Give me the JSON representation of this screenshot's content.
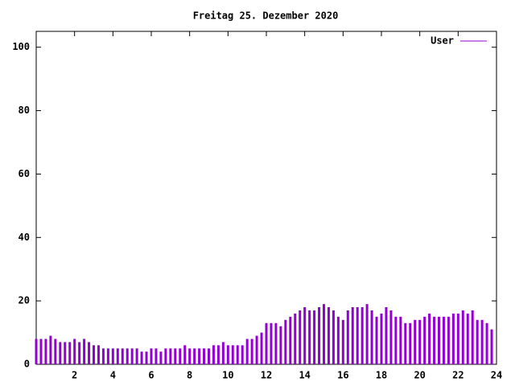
{
  "chart_data": {
    "type": "impulse",
    "title": "Freitag 25. Dezember 2020",
    "series": [
      {
        "name": "User",
        "color": "#9400d3",
        "x": [
          0,
          0.25,
          0.5,
          0.75,
          1,
          1.25,
          1.5,
          1.75,
          2,
          2.25,
          2.5,
          2.75,
          3,
          3.25,
          3.5,
          3.75,
          4,
          4.25,
          4.5,
          4.75,
          5,
          5.25,
          5.5,
          5.75,
          6,
          6.25,
          6.5,
          6.75,
          7,
          7.25,
          7.5,
          7.75,
          8,
          8.25,
          8.5,
          8.75,
          9,
          9.25,
          9.5,
          9.75,
          10,
          10.25,
          10.5,
          10.75,
          11,
          11.25,
          11.5,
          11.75,
          12,
          12.25,
          12.5,
          12.75,
          13,
          13.25,
          13.5,
          13.75,
          14,
          14.25,
          14.5,
          14.75,
          15,
          15.25,
          15.5,
          15.75,
          16,
          16.25,
          16.5,
          16.75,
          17,
          17.25,
          17.5,
          17.75,
          18,
          18.25,
          18.5,
          18.75,
          19,
          19.25,
          19.5,
          19.75,
          20,
          20.25,
          20.5,
          20.75,
          21,
          21.25,
          21.5,
          21.75,
          22,
          22.25,
          22.5,
          22.75,
          23,
          23.25,
          23.5,
          23.75
        ],
        "values": [
          8,
          8,
          8,
          9,
          8,
          7,
          7,
          7,
          8,
          7,
          8,
          7,
          6,
          6,
          5,
          5,
          5,
          5,
          5,
          5,
          5,
          5,
          4,
          4,
          5,
          5,
          4,
          5,
          5,
          5,
          5,
          6,
          5,
          5,
          5,
          5,
          5,
          6,
          6,
          7,
          6,
          6,
          6,
          6,
          8,
          8,
          9,
          10,
          13,
          13,
          13,
          12,
          14,
          15,
          16,
          17,
          18,
          17,
          17,
          18,
          19,
          18,
          17,
          15,
          14,
          17,
          18,
          18,
          18,
          19,
          17,
          15,
          16,
          18,
          17,
          15,
          15,
          13,
          13,
          14,
          14,
          15,
          16,
          15,
          15,
          15,
          15,
          16,
          16,
          17,
          16,
          17,
          14,
          14,
          13,
          11
        ]
      }
    ],
    "xlim": [
      0,
      24
    ],
    "xticks": [
      2,
      4,
      6,
      8,
      10,
      12,
      14,
      16,
      18,
      20,
      22,
      24
    ],
    "ylim": [
      0,
      105
    ],
    "yticks": [
      0,
      20,
      40,
      60,
      80,
      100
    ]
  }
}
